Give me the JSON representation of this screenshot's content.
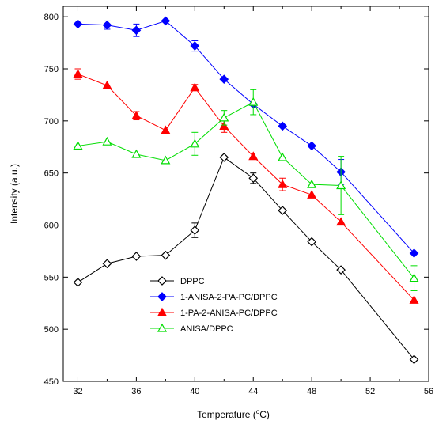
{
  "chart_data": {
    "type": "line",
    "xlabel": "Temperature (",
    "xlabel_sup": "o",
    "xlabel_end": "C)",
    "ylabel": "Intensity (a.u.)",
    "xlim": [
      31,
      56
    ],
    "ylim": [
      450,
      810
    ],
    "xticks": [
      32,
      36,
      40,
      44,
      48,
      52,
      56
    ],
    "xminor": [
      34,
      38,
      42,
      46,
      50,
      54
    ],
    "yticks": [
      450,
      500,
      550,
      600,
      650,
      700,
      750,
      800
    ],
    "x": [
      32,
      34,
      36,
      38,
      40,
      42,
      44,
      46,
      48,
      50,
      55
    ],
    "legend_position": "lower-left",
    "series": [
      {
        "name": "DPPC",
        "color": "#000000",
        "marker": "diamond-open",
        "values": [
          545,
          563,
          570,
          571,
          595,
          665,
          645,
          614,
          584,
          557,
          471
        ],
        "errors": [
          0,
          0,
          0,
          0,
          7,
          0,
          5,
          0,
          0,
          0,
          0
        ]
      },
      {
        "name": "1-ANISA-2-PA-PC/DPPC",
        "color": "#0000ff",
        "marker": "diamond-filled",
        "values": [
          793,
          792,
          787,
          796,
          772,
          740,
          716,
          695,
          676,
          651,
          573
        ],
        "errors": [
          0,
          4,
          6,
          0,
          5,
          0,
          0,
          0,
          0,
          12,
          0
        ]
      },
      {
        "name": "1-PA-2-ANISA-PC/DPPC",
        "color": "#ff0000",
        "marker": "triangle-filled",
        "values": [
          745,
          734,
          705,
          691,
          732,
          695,
          666,
          639,
          629,
          603,
          528
        ],
        "errors": [
          5,
          0,
          4,
          0,
          3,
          6,
          0,
          6,
          0,
          0,
          0
        ]
      },
      {
        "name": "ANISA/DPPC",
        "color": "#00dd00",
        "marker": "triangle-open",
        "values": [
          676,
          680,
          668,
          662,
          678,
          703,
          718,
          665,
          639,
          638,
          549
        ],
        "errors": [
          0,
          0,
          0,
          0,
          11,
          7,
          12,
          0,
          0,
          28,
          12
        ]
      }
    ]
  }
}
